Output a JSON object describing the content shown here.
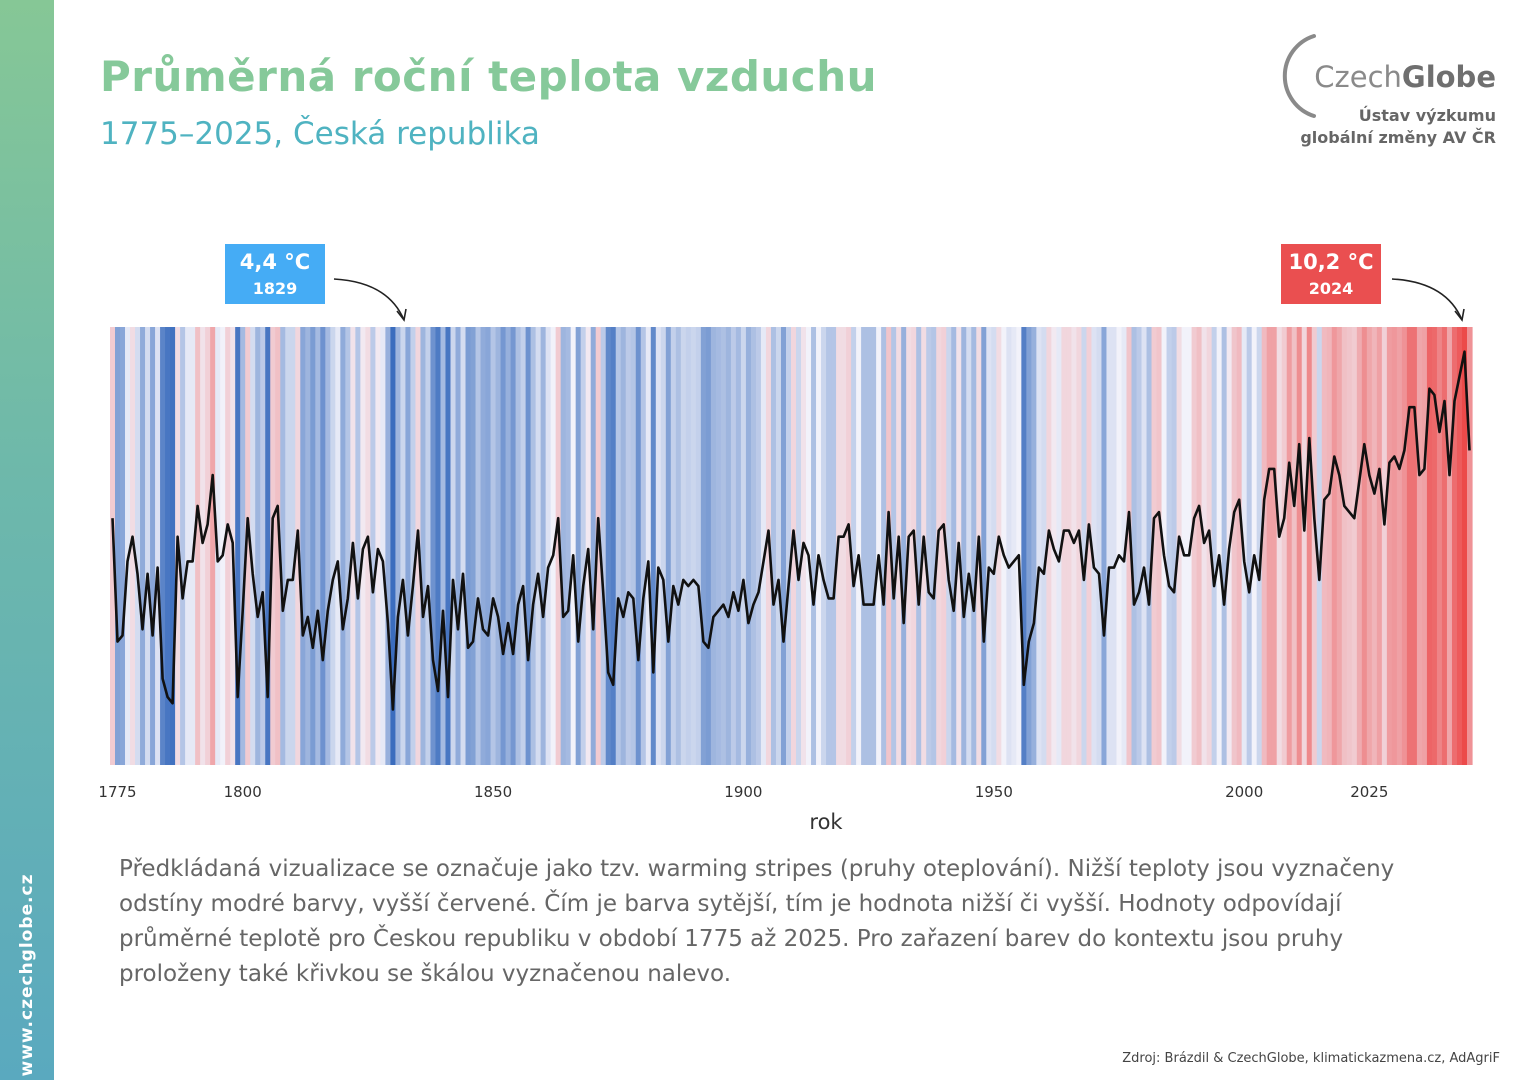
{
  "header": {
    "title": "Průměrná roční teplota vzduchu",
    "subtitle": "1775–2025, Česká republika"
  },
  "logo": {
    "name_part1": "Czech",
    "name_part2": "Globe",
    "line1": "Ústav výzkumu",
    "line2": "globální změny AV ČR"
  },
  "sidebar": {
    "url": "www.czechglobe.cz"
  },
  "colors": {
    "title": "#86c99a",
    "subtitle": "#4fb3c1",
    "cold": "#3b6dbe",
    "neutral": "#f2f2fa",
    "warm": "#ec4a4a",
    "callout_min_bg": "#45acf5",
    "callout_max_bg": "#ea4f50"
  },
  "callouts": {
    "min": {
      "value": "4,4 °C",
      "year": "1829"
    },
    "max": {
      "value": "10,2 °C",
      "year": "2024"
    }
  },
  "chart_data": {
    "type": "line",
    "style": "warming stripes with overlaid temperature line",
    "xlabel": "rok",
    "ylabel": "",
    "x_ticks": [
      1775,
      1800,
      1850,
      1900,
      1950,
      2000,
      2025
    ],
    "xlim": [
      1775,
      2025
    ],
    "ylim": [
      3.5,
      10.6
    ],
    "grid": false,
    "series": [
      {
        "x_start": 1774,
        "unit": "°C",
        "values": [
          7.5,
          5.5,
          5.6,
          6.8,
          7.2,
          6.6,
          5.7,
          6.6,
          5.6,
          6.7,
          4.9,
          4.6,
          4.5,
          7.2,
          6.2,
          6.8,
          6.8,
          7.7,
          7.1,
          7.4,
          8.2,
          6.8,
          6.9,
          7.4,
          7.1,
          4.6,
          6.0,
          7.5,
          6.6,
          5.9,
          6.3,
          4.6,
          7.5,
          7.7,
          6.0,
          6.5,
          6.5,
          7.3,
          5.6,
          5.9,
          5.4,
          6.0,
          5.2,
          6.0,
          6.5,
          6.8,
          5.7,
          6.2,
          7.1,
          6.2,
          7.0,
          7.2,
          6.3,
          7.0,
          6.8,
          5.8,
          4.4,
          5.9,
          6.5,
          5.6,
          6.4,
          7.3,
          5.9,
          6.4,
          5.2,
          4.7,
          6.0,
          4.6,
          6.5,
          5.7,
          6.6,
          5.4,
          5.5,
          6.2,
          5.7,
          5.6,
          6.2,
          5.9,
          5.3,
          5.8,
          5.3,
          6.1,
          6.4,
          5.2,
          6.1,
          6.6,
          5.9,
          6.7,
          6.9,
          7.5,
          5.9,
          6.0,
          6.9,
          5.5,
          6.4,
          7.0,
          5.7,
          7.5,
          6.3,
          5.0,
          4.8,
          6.2,
          5.9,
          6.3,
          6.2,
          5.2,
          6.2,
          6.8,
          5.0,
          6.7,
          6.5,
          5.5,
          6.4,
          6.1,
          6.5,
          6.4,
          6.5,
          6.4,
          5.5,
          5.4,
          5.9,
          6.0,
          6.1,
          5.9,
          6.3,
          6.0,
          6.5,
          5.8,
          6.1,
          6.3,
          6.8,
          7.3,
          6.1,
          6.5,
          5.5,
          6.4,
          7.3,
          6.5,
          7.1,
          6.9,
          6.1,
          6.9,
          6.5,
          6.2,
          6.2,
          7.2,
          7.2,
          7.4,
          6.4,
          6.9,
          6.1,
          6.1,
          6.1,
          6.9,
          6.1,
          7.6,
          6.2,
          7.2,
          5.8,
          7.2,
          7.3,
          6.1,
          7.2,
          6.3,
          6.2,
          7.3,
          7.4,
          6.5,
          6.0,
          7.1,
          5.9,
          6.6,
          6.0,
          7.2,
          5.5,
          6.7,
          6.6,
          7.2,
          6.9,
          6.7,
          6.8,
          6.9,
          4.8,
          5.5,
          5.8,
          6.7,
          6.6,
          7.3,
          7.0,
          6.8,
          7.3,
          7.3,
          7.1,
          7.3,
          6.5,
          7.4,
          6.7,
          6.6,
          5.6,
          6.7,
          6.7,
          6.9,
          6.8,
          7.6,
          6.1,
          6.3,
          6.7,
          6.1,
          7.5,
          7.6,
          6.9,
          6.4,
          6.3,
          7.2,
          6.9,
          6.9,
          7.5,
          7.7,
          7.1,
          7.3,
          6.4,
          6.9,
          6.1,
          7.0,
          7.6,
          7.8,
          6.8,
          6.3,
          6.9,
          6.5,
          7.8,
          8.3,
          8.3,
          7.2,
          7.5,
          8.4,
          7.7,
          8.7,
          7.3,
          8.8,
          7.5,
          6.5,
          7.8,
          7.9,
          8.5,
          8.2,
          7.7,
          7.6,
          7.5,
          8.1,
          8.7,
          8.2,
          7.9,
          8.3,
          7.4,
          8.4,
          8.5,
          8.3,
          8.6,
          9.3,
          9.3,
          8.2,
          8.3,
          9.6,
          9.5,
          8.9,
          9.4,
          8.2,
          9.4,
          9.8,
          10.2,
          8.6
        ]
      }
    ]
  },
  "description": "Předkládaná vizualizace se označuje jako tzv. warming stripes (pruhy oteplování). Nižší teploty jsou vyznačeny odstíny modré barvy, vyšší červené. Čím je barva sytější, tím je hodnota nižší či vyšší. Hodnoty odpovídají průměrné teplotě pro Českou republiku v období 1775 až 2025. Pro zařazení barev do kontextu jsou pruhy proloženy také křivkou se škálou vyznačenou nalevo.",
  "source": "Zdroj: Brázdil & CzechGlobe, klimatickazmena.cz, AdAgriF"
}
